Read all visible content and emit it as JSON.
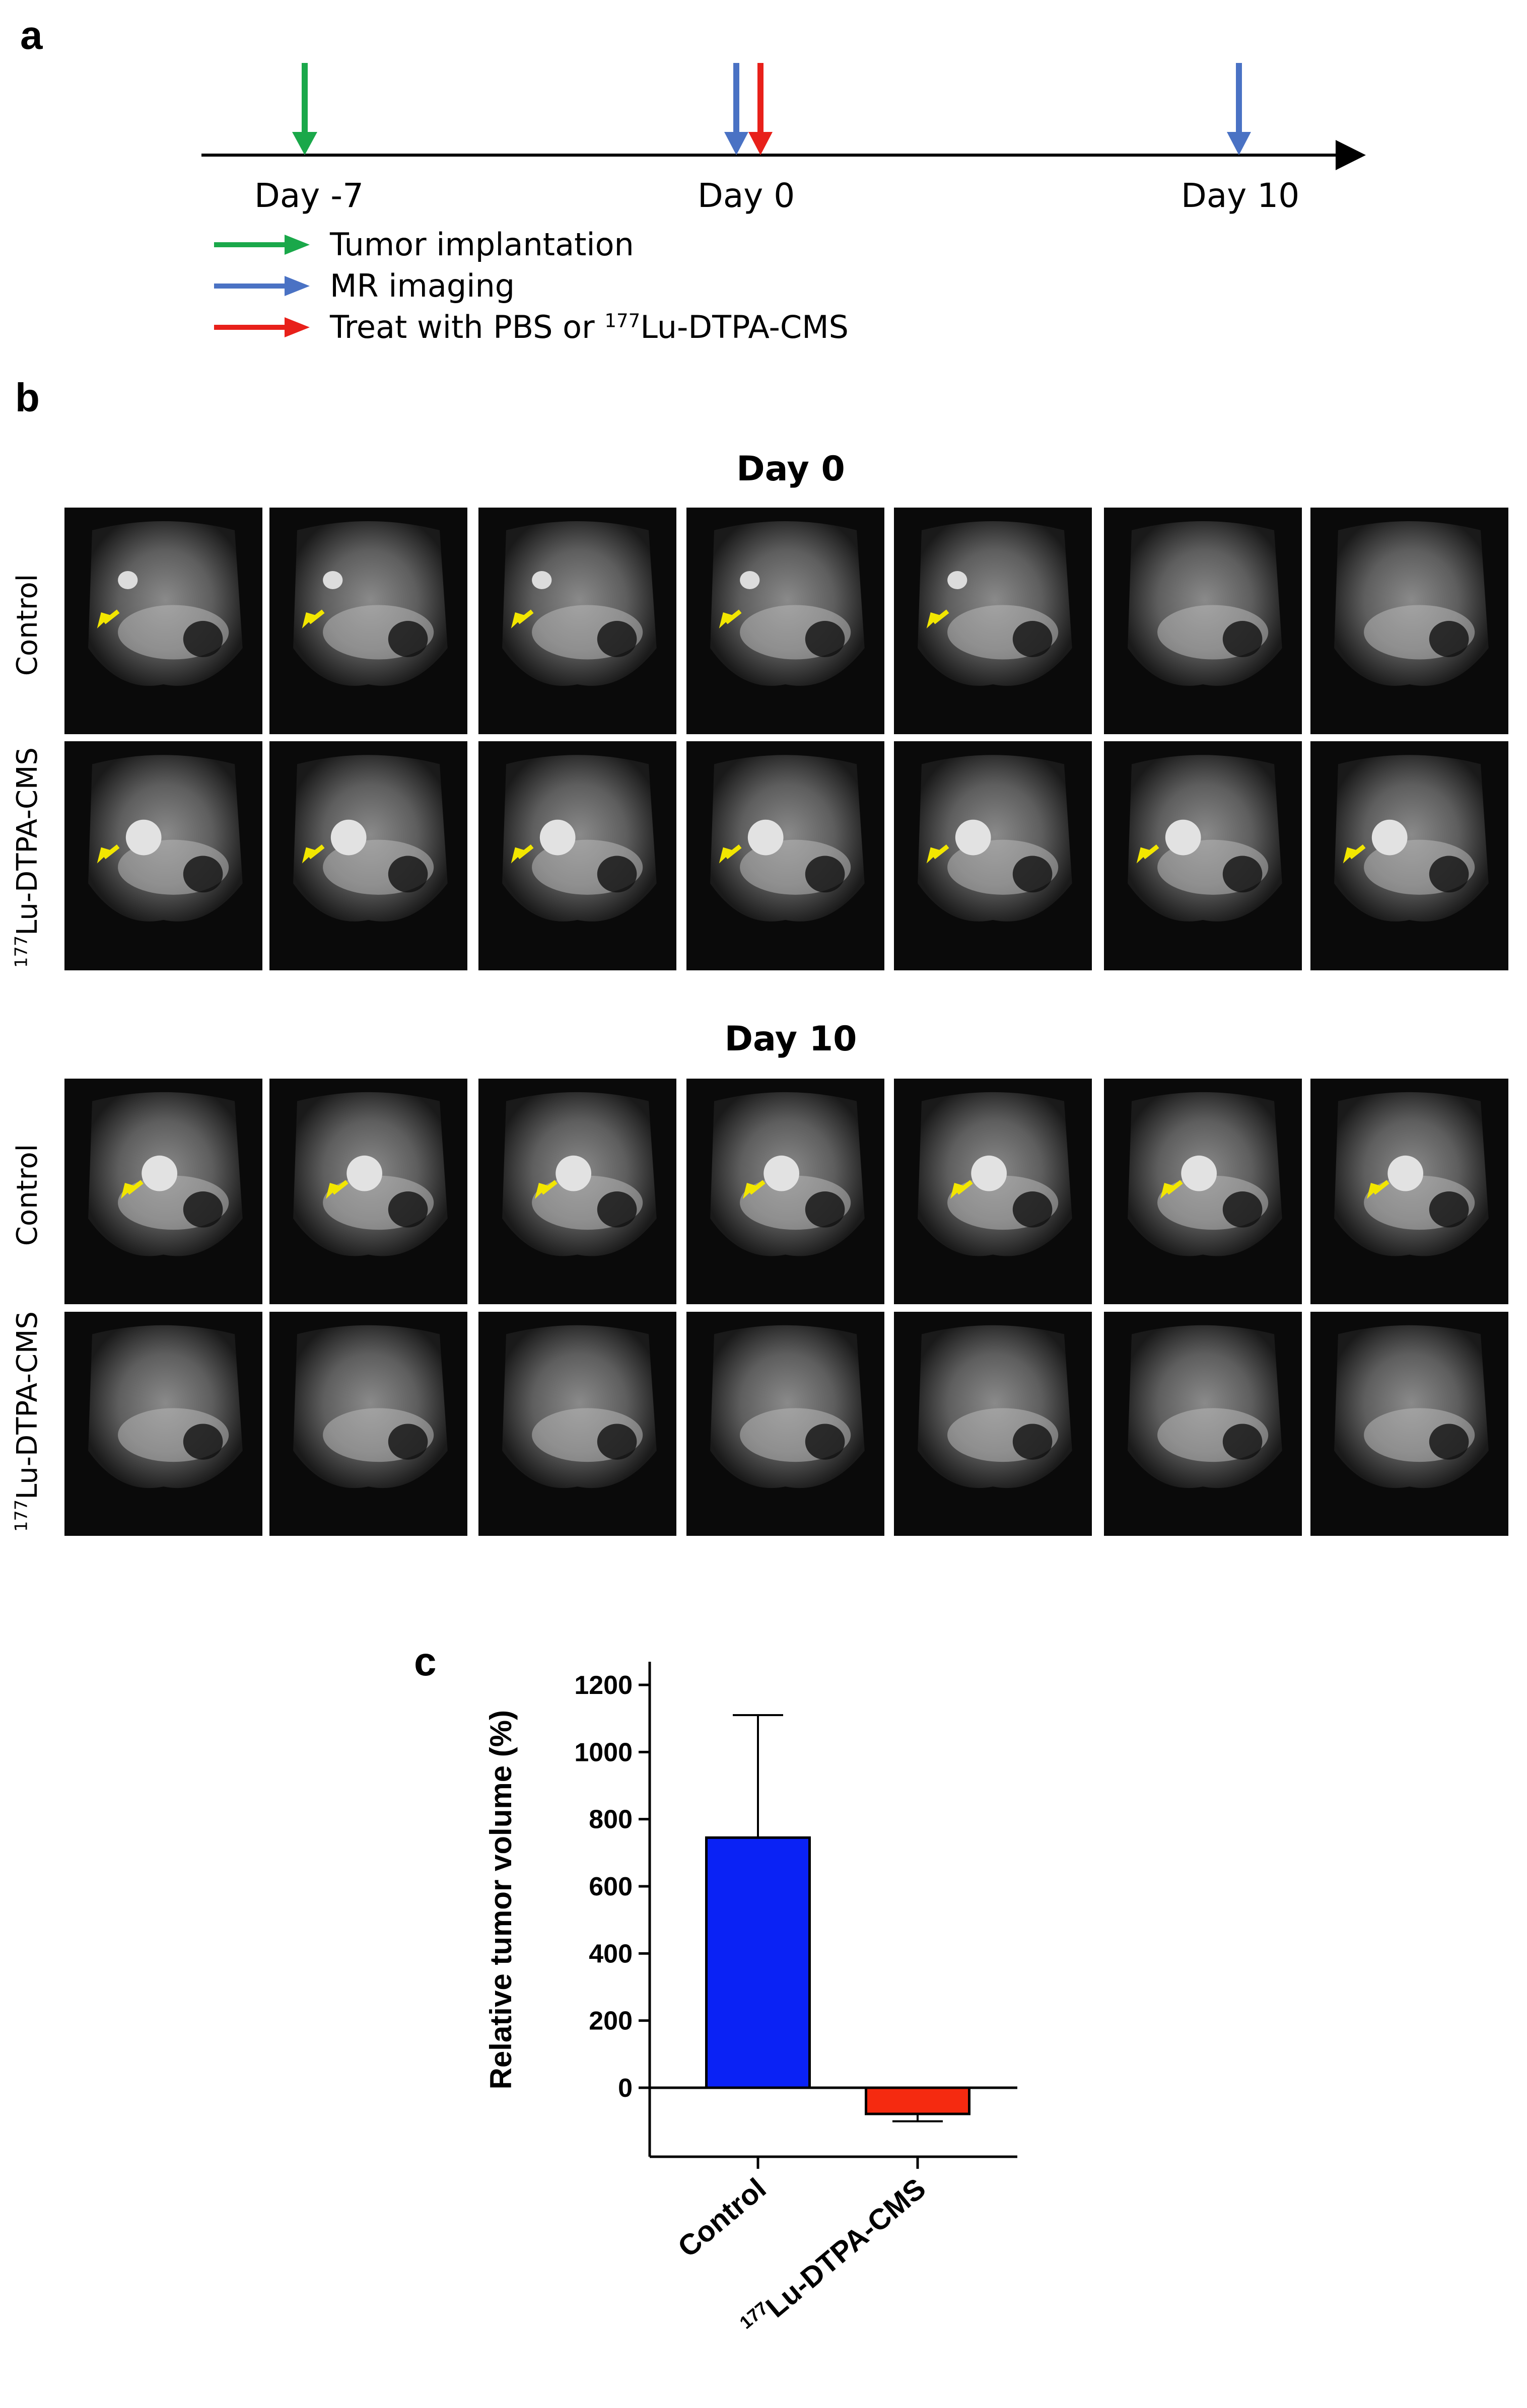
{
  "panel_a": {
    "letter": "a",
    "timeline": [
      {
        "label": "Day -7"
      },
      {
        "label": "Day 0"
      },
      {
        "label": "Day 10"
      }
    ],
    "legend": [
      {
        "text": "Tumor implantation",
        "color": "#1aa84a"
      },
      {
        "text": "MR imaging",
        "color": "#4a72c4"
      },
      {
        "text_pre": "Treat with PBS or ",
        "sup": "177",
        "text_post": "Lu-DTPA-CMS",
        "color": "#e8201a"
      }
    ]
  },
  "panel_b": {
    "letter": "b",
    "day0_title": "Day 0",
    "day10_title": "Day 10",
    "rows": {
      "control": "Control",
      "treated_sup": "177",
      "treated": "Lu-DTPA-CMS"
    },
    "arrow_color": "#f2e600"
  },
  "panel_c": {
    "letter": "c",
    "chart_data": {
      "type": "bar",
      "categories": [
        "Control",
        "177Lu-DTPA-CMS"
      ],
      "category_display": [
        {
          "text": "Control"
        },
        {
          "sup": "177",
          "text": "Lu-DTPA-CMS"
        }
      ],
      "values": [
        745,
        -78
      ],
      "error_bars": [
        365,
        22
      ],
      "colors": [
        "#0a22f5",
        "#f52a10"
      ],
      "ylabel": "Relative tumor volume (%)",
      "ylim": [
        -200,
        1300
      ],
      "yticks": [
        0,
        200,
        400,
        600,
        800,
        1000,
        1200
      ]
    }
  }
}
